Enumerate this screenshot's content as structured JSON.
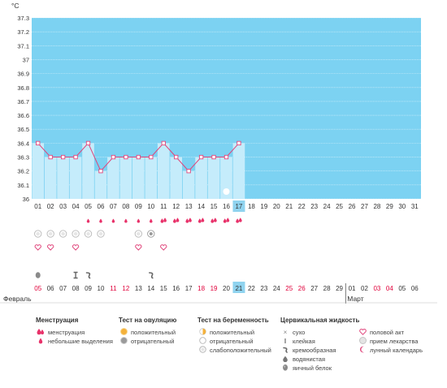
{
  "chart_data": {
    "type": "line",
    "ylabel": "°C",
    "ylim": [
      36.0,
      37.3
    ],
    "y_ticks": [
      "36",
      "36.1",
      "36.2",
      "36.3",
      "36.4",
      "36.5",
      "36.6",
      "36.7",
      "36.8",
      "36.9",
      "37",
      "37.1",
      "37.2",
      "37.3"
    ],
    "cycle_days": [
      "01",
      "02",
      "03",
      "04",
      "05",
      "06",
      "07",
      "08",
      "09",
      "10",
      "11",
      "12",
      "13",
      "14",
      "15",
      "16",
      "17",
      "18",
      "19",
      "20",
      "21",
      "22",
      "23",
      "24",
      "25",
      "26",
      "27",
      "28",
      "29",
      "30",
      "31"
    ],
    "series": [
      {
        "values": [
          36.4,
          36.3,
          36.3,
          36.3,
          36.4,
          36.2,
          36.3,
          36.3,
          36.3,
          36.3,
          36.4,
          36.3,
          36.2,
          36.3,
          36.3,
          36.3,
          36.4
        ]
      }
    ],
    "current_cycle_day": "17",
    "calendar_dates": [
      "05",
      "06",
      "07",
      "08",
      "09",
      "10",
      "11",
      "12",
      "13",
      "14",
      "15",
      "16",
      "17",
      "18",
      "19",
      "20",
      "21",
      "22",
      "23",
      "24",
      "25",
      "26",
      "27",
      "28",
      "29",
      "01",
      "02",
      "03",
      "04",
      "05",
      "06"
    ],
    "weekend_dates_index": [
      0,
      6,
      7,
      13,
      14,
      20,
      21,
      27,
      28
    ],
    "today_date_index": 16,
    "months": [
      {
        "label": "Февраль",
        "start_index": 0
      },
      {
        "label": "Март",
        "start_index": 25
      }
    ],
    "rows": {
      "menstruation_heavy_days": [
        11,
        12,
        13,
        14,
        15,
        16,
        17
      ],
      "menstruation_light_days": [
        5,
        6,
        7,
        8,
        9,
        10
      ],
      "ovulation_test_days": [
        1,
        2,
        3,
        4,
        5,
        6,
        9
      ],
      "pregnancy_test_days": [
        10
      ],
      "love_days": [
        1,
        2,
        4,
        9,
        11
      ],
      "lunar_day": 16,
      "fluid_egg_white_day": 1,
      "fluid_sticky_day": 4,
      "fluid_creamy_days": [
        5,
        10
      ]
    }
  },
  "legend": {
    "menstruation": {
      "title": "Менструация",
      "items": [
        {
          "icon": "drop-cluster",
          "label": "менструация"
        },
        {
          "icon": "drop",
          "label": "небольшие выделения"
        }
      ]
    },
    "ovulation": {
      "title": "Тест на овуляцию",
      "items": [
        {
          "icon": "orange-dot",
          "label": "положительный"
        },
        {
          "icon": "gray-dot",
          "label": "отрицательный"
        }
      ]
    },
    "pregnancy": {
      "title": "Тест на беременность",
      "items": [
        {
          "icon": "orange-half-circle",
          "label": "положительный"
        },
        {
          "icon": "empty-circle",
          "label": "отрицательный"
        },
        {
          "icon": "faint-circle",
          "label": "слабоположительный"
        }
      ]
    },
    "cervical": {
      "title": "Цервикальная жидкость",
      "items": [
        {
          "icon": "cross",
          "label": "сухо"
        },
        {
          "icon": "sticky",
          "label": "клейкая"
        },
        {
          "icon": "creamy",
          "label": "кремообразная"
        },
        {
          "icon": "watery",
          "label": "водянистая"
        },
        {
          "icon": "egg-white",
          "label": "яичный белок"
        }
      ]
    },
    "other": {
      "items": [
        {
          "icon": "heart",
          "label": "половой акт"
        },
        {
          "icon": "pill",
          "label": "прием лекарства"
        },
        {
          "icon": "moon",
          "label": "лунный календарь"
        }
      ]
    }
  },
  "colors": {
    "plot_bg": "#7cd2f2",
    "bar_fill": "#c5ecfb",
    "line": "#e0457b",
    "axis_text": "#333333",
    "weekend_text": "#e0003a",
    "today_bg": "#8fd3ef",
    "drop": "#e8326a"
  }
}
